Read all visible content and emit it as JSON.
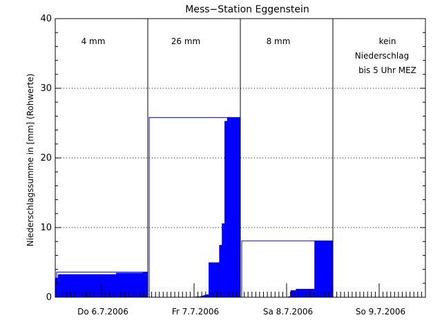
{
  "chart_data": {
    "type": "bar",
    "title": "Mess−Station Eggenstein",
    "ylabel": "Niederschlagssumme in [mm] (Rohwerte)",
    "ylim": [
      0,
      40
    ],
    "yticks": [
      0,
      10,
      20,
      30,
      40
    ],
    "ytick_labels": [
      "0",
      "10",
      "20",
      "30",
      "40"
    ],
    "grid": "horizontal dotted",
    "bar_color": "#0000ff",
    "frame_color": "#000000",
    "days": [
      {
        "label": "Do 6.7.2006",
        "total_label": "4 mm",
        "total": 3.6,
        "cumulative": [
          2.8,
          3.3,
          3.3,
          3.3,
          3.3,
          3.3,
          3.3,
          3.3,
          3.3,
          3.3,
          3.3,
          3.3,
          3.3,
          3.3,
          3.3,
          3.3,
          3.3,
          3.3,
          3.3,
          3.3,
          3.3,
          3.3,
          3.3,
          3.5,
          3.5,
          3.5,
          3.5,
          3.5,
          3.5,
          3.5,
          3.5,
          3.5,
          3.5,
          3.6,
          3.6
        ]
      },
      {
        "label": "Fr 7.7.2006",
        "total_label": "26 mm",
        "total": 25.8,
        "cumulative": [
          0,
          0,
          0,
          0,
          0,
          0,
          0,
          0,
          0,
          0,
          0,
          0,
          0,
          0,
          0,
          0,
          0,
          0,
          0.1,
          0.1,
          0.2,
          0.3,
          0.4,
          5.0,
          5.0,
          5.0,
          5.0,
          7.5,
          10.6,
          25.3,
          25.8,
          25.8,
          25.8,
          25.8,
          25.8
        ]
      },
      {
        "label": "Sa 8.7.2006",
        "total_label": "8 mm",
        "total": 8.1,
        "cumulative": [
          0,
          0,
          0,
          0,
          0,
          0,
          0,
          0,
          0,
          0,
          0,
          0,
          0,
          0,
          0,
          0,
          0,
          0,
          0.1,
          1.0,
          1.0,
          1.2,
          1.2,
          1.2,
          1.2,
          1.2,
          1.2,
          1.2,
          8.1,
          8.1,
          8.1,
          8.1,
          8.1,
          8.1,
          8.1
        ]
      },
      {
        "label": "So 9.7.2006",
        "total_label": "kein Niederschlag bis 5 Uhr MEZ",
        "total": null,
        "total_lines": [
          "kein",
          "Niederschlag",
          "bis 5 Uhr MEZ"
        ],
        "cumulative": []
      }
    ]
  }
}
